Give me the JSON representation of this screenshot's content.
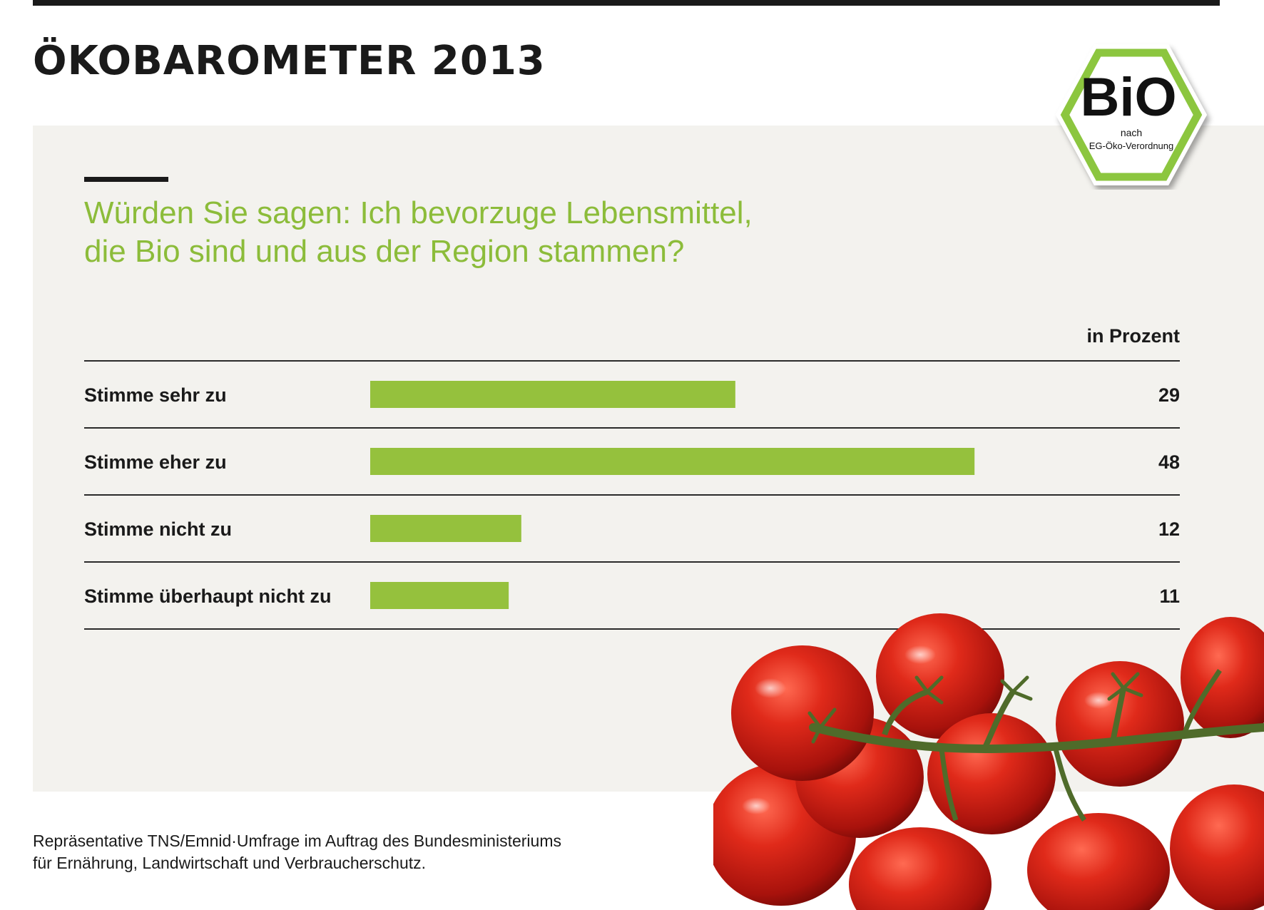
{
  "header": {
    "title": "ÖKOBAROMETER 2013"
  },
  "seal": {
    "word": "BiO",
    "line1": "nach",
    "line2": "EG-Öko-Verordnung"
  },
  "question": {
    "line1": "Würden Sie sagen: Ich bevorzuge Lebensmittel,",
    "line2": "die Bio sind und aus der Region stammen?"
  },
  "colors": {
    "bar": "#95c13d",
    "question_text": "#8cbc3a",
    "panel": "#f3f2ee"
  },
  "chart_data": {
    "type": "bar",
    "orientation": "horizontal",
    "unit_label": "in Prozent",
    "categories": [
      "Stimme sehr zu",
      "Stimme eher zu",
      "Stimme nicht zu",
      "Stimme überhaupt nicht zu"
    ],
    "values": [
      29,
      48,
      12,
      11
    ],
    "value_labels": [
      "29",
      "48",
      "12",
      "11"
    ],
    "xlim": [
      0,
      100
    ],
    "grid": false
  },
  "footnote": {
    "line1": "Repräsentative TNS/Emnid·Umfrage im Auftrag des Bundesministeriums",
    "line2": "für Ernährung, Landwirtschaft und Verbraucherschutz."
  }
}
